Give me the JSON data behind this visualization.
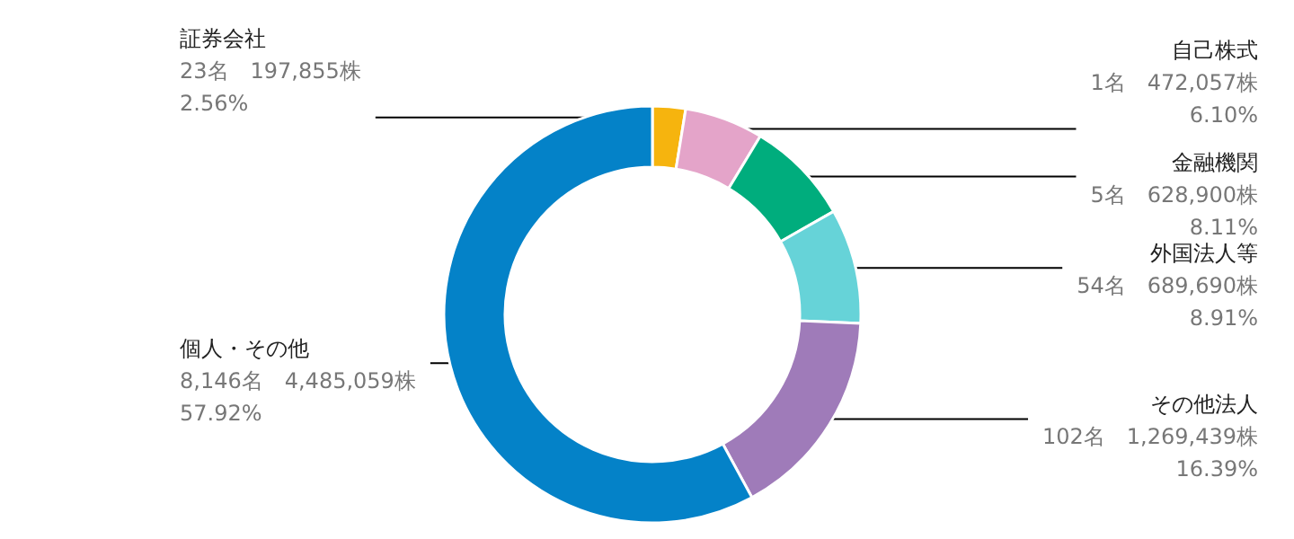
{
  "chart_data": {
    "type": "donut",
    "categories": [
      "証券会社",
      "自己株式",
      "金融機関",
      "外国法人等",
      "その他法人",
      "個人・その他"
    ],
    "values": [
      2.56,
      6.1,
      8.11,
      8.91,
      16.39,
      57.92
    ],
    "colors": [
      "#f6b40e",
      "#e4a4c9",
      "#00ad7d",
      "#66d3d8",
      "#9f7bb9",
      "#0482c8"
    ],
    "value_labels": [
      "23名　197,855株\n2.56%",
      "1名　472,057株\n6.10%",
      "5名　628,900株\n8.11%",
      "54名　689,690株\n8.91%",
      "102名　1,269,439株\n16.39%",
      "8,146名　4,485,059株\n57.92%"
    ]
  }
}
